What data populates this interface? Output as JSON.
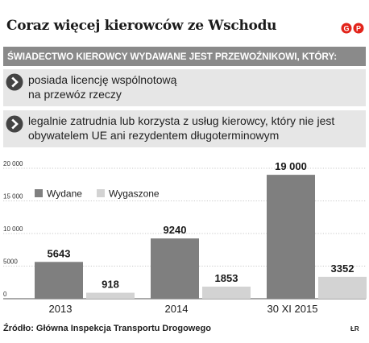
{
  "header": {
    "title": "Coraz więcej kierowców ze Wschodu",
    "logo_text": "GP",
    "logo_color": "#e2231a"
  },
  "banner": {
    "text": "ŚWIADECTWO KIEROWCY WYDAWANE JEST PRZEWOŹNIKOWI, KTÓRY:"
  },
  "criteria": [
    {
      "line1": "posiada licencję wspólnotową",
      "line2": "na przewóz rzeczy",
      "icon": "arrow-right-circle-icon"
    },
    {
      "line1": "legalnie zatrudnia lub korzysta z usług kierowcy, który nie jest",
      "line2": "obywatelem UE ani rezydentem długoterminowym",
      "icon": "arrow-right-circle-icon"
    }
  ],
  "chart_data": {
    "type": "bar",
    "categories": [
      "2013",
      "2014",
      "30 XI 2015"
    ],
    "series": [
      {
        "name": "Wydane",
        "values": [
          5643,
          9240,
          19000
        ],
        "labels": [
          "5643",
          "9240",
          "19 000"
        ],
        "color": "#7f7f7f"
      },
      {
        "name": "Wygaszone",
        "values": [
          918,
          1853,
          3352
        ],
        "labels": [
          "918",
          "1853",
          "3352"
        ],
        "color": "#d3d3d3"
      }
    ],
    "yticks": [
      0,
      5000,
      10000,
      15000,
      20000
    ],
    "ytick_labels": [
      "0",
      "5000",
      "10 000",
      "15 000",
      "20 000"
    ],
    "ylim": [
      0,
      20000
    ],
    "grid": true,
    "legend_position": "top-left"
  },
  "footer": {
    "source": "Źródło: Główna Inspekcja Transportu Drogowego",
    "author": "ŁR"
  }
}
